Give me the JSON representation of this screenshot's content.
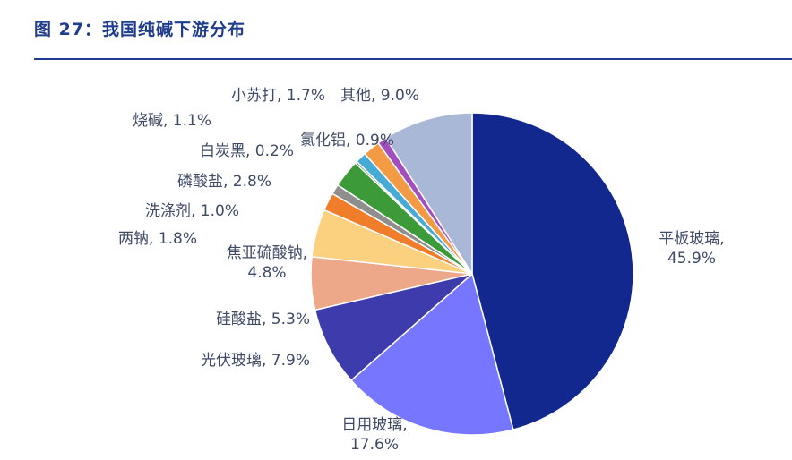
{
  "header": {
    "title": "图 27：我国纯碱下游分布"
  },
  "chart_data": {
    "type": "pie",
    "title": "",
    "start": "top, clockwise",
    "slices": [
      {
        "name": "平板玻璃",
        "value": 45.9,
        "color": "#13288f",
        "label": [
          "平板玻璃,",
          "45.9%"
        ]
      },
      {
        "name": "日用玻璃",
        "value": 17.6,
        "color": "#7676ff",
        "label": [
          "日用玻璃,",
          "17.6%"
        ]
      },
      {
        "name": "光伏玻璃",
        "value": 7.9,
        "color": "#3e3cad",
        "label": [
          "光伏玻璃, 7.9%"
        ]
      },
      {
        "name": "硅酸盐",
        "value": 5.3,
        "color": "#eda88a",
        "label": [
          "硅酸盐, 5.3%"
        ]
      },
      {
        "name": "焦亚硫酸钠",
        "value": 4.8,
        "color": "#fbd07f",
        "label": [
          "焦亚硫酸钠,",
          "4.8%"
        ]
      },
      {
        "name": "两钠",
        "value": 1.8,
        "color": "#ef7d2a",
        "label": [
          "两钠, 1.8%"
        ]
      },
      {
        "name": "洗涤剂",
        "value": 1.0,
        "color": "#8e8e8e",
        "label": [
          "洗涤剂, 1.0%"
        ]
      },
      {
        "name": "磷酸盐",
        "value": 2.8,
        "color": "#3c9a39",
        "label": [
          "磷酸盐, 2.8%"
        ]
      },
      {
        "name": "白炭黑",
        "value": 0.2,
        "color": "#1d5f2c",
        "label": [
          "白炭黑, 0.2%"
        ]
      },
      {
        "name": "烧碱",
        "value": 1.1,
        "color": "#48abd6",
        "label": [
          "烧碱, 1.1%"
        ]
      },
      {
        "name": "小苏打",
        "value": 1.7,
        "color": "#f39a44",
        "label": [
          "小苏打, 1.7%"
        ]
      },
      {
        "name": "氯化铝",
        "value": 0.9,
        "color": "#a24fbd",
        "label": [
          "氯化铝, 0.9%"
        ]
      },
      {
        "name": "其他",
        "value": 9.0,
        "color": "#aab8d8",
        "label": [
          "其他, 9.0%"
        ]
      }
    ]
  }
}
